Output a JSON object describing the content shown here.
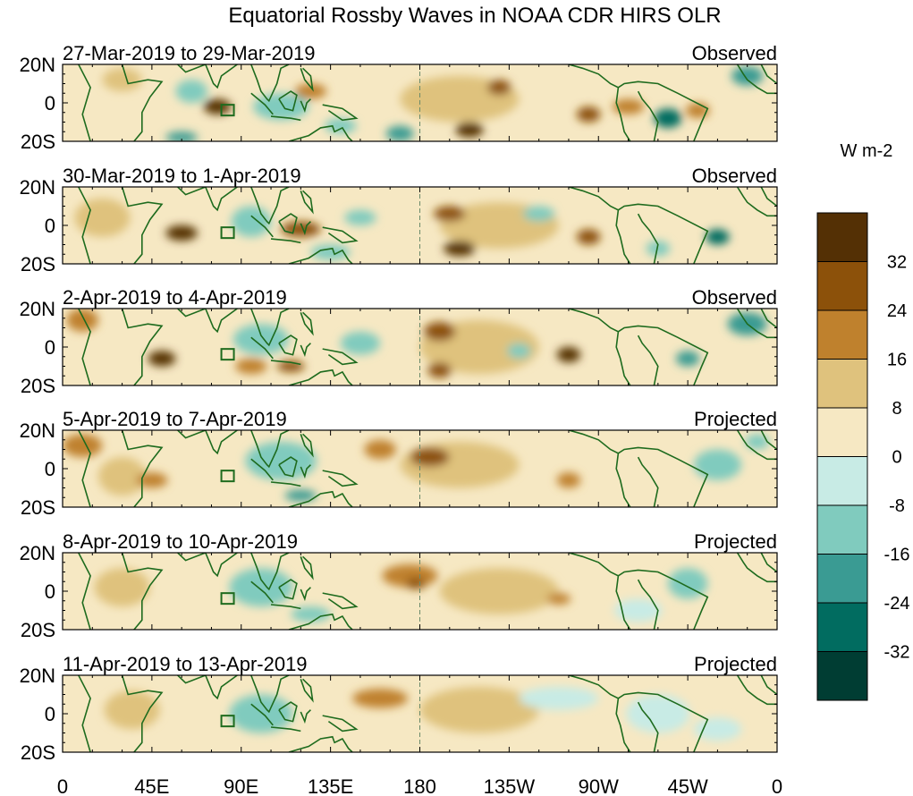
{
  "chart_data": {
    "type": "heatmap",
    "title": "Equatorial Rossby Waves in NOAA CDR HIRS OLR",
    "variable": "OLR anomaly",
    "units": "W m-2",
    "xlabel": "",
    "ylabel": "",
    "x_ticks": [
      "0",
      "45E",
      "90E",
      "135E",
      "180",
      "135W",
      "90W",
      "45W",
      "0"
    ],
    "x_tick_values": [
      0,
      45,
      90,
      135,
      180,
      225,
      270,
      315,
      360
    ],
    "x_range": [
      0,
      360
    ],
    "y_ticks": [
      "20N",
      "0",
      "20S"
    ],
    "y_tick_values": [
      20,
      0,
      -20
    ],
    "y_range": [
      -20,
      20
    ],
    "colorbar": {
      "levels": [
        -32,
        -24,
        -16,
        -8,
        0,
        8,
        16,
        24,
        32
      ],
      "labels": [
        "32",
        "24",
        "16",
        "8",
        "0",
        "-8",
        "-16",
        "-24",
        "-32"
      ],
      "colors": [
        "#003d33",
        "#016c60",
        "#3a9b93",
        "#80cbbe",
        "#c8ebe5",
        "#f6e8c3",
        "#dfc27d",
        "#bf812d",
        "#8c510a",
        "#543005"
      ]
    },
    "reference_line": {
      "x": 180,
      "style": "dashed"
    },
    "panels": [
      {
        "dates": "27-Mar-2019 to 29-Mar-2019",
        "status": "Observed",
        "blobs": [
          {
            "lon": 110,
            "lat": -2,
            "v": -16,
            "rx": 14,
            "ry": 7
          },
          {
            "lon": 78,
            "lat": -2,
            "v": 32,
            "rx": 7,
            "ry": 4
          },
          {
            "lon": 65,
            "lat": 6,
            "v": -16,
            "rx": 8,
            "ry": 6
          },
          {
            "lon": 125,
            "lat": 6,
            "v": 16,
            "rx": 8,
            "ry": 4
          },
          {
            "lon": 140,
            "lat": -12,
            "v": -16,
            "rx": 8,
            "ry": 4
          },
          {
            "lon": 170,
            "lat": -16,
            "v": -24,
            "rx": 7,
            "ry": 4
          },
          {
            "lon": 200,
            "lat": 2,
            "v": 8,
            "rx": 30,
            "ry": 12
          },
          {
            "lon": 220,
            "lat": 8,
            "v": 24,
            "rx": 6,
            "ry": 4
          },
          {
            "lon": 205,
            "lat": -14,
            "v": 32,
            "rx": 7,
            "ry": 4
          },
          {
            "lon": 265,
            "lat": -6,
            "v": 24,
            "rx": 6,
            "ry": 4
          },
          {
            "lon": 285,
            "lat": -2,
            "v": 16,
            "rx": 8,
            "ry": 4
          },
          {
            "lon": 305,
            "lat": -8,
            "v": -32,
            "rx": 7,
            "ry": 5
          },
          {
            "lon": 320,
            "lat": -4,
            "v": 16,
            "rx": 6,
            "ry": 4
          },
          {
            "lon": 345,
            "lat": 14,
            "v": -24,
            "rx": 8,
            "ry": 5
          },
          {
            "lon": 30,
            "lat": 12,
            "v": 8,
            "rx": 10,
            "ry": 6
          },
          {
            "lon": 60,
            "lat": -18,
            "v": -24,
            "rx": 8,
            "ry": 3
          }
        ]
      },
      {
        "dates": "30-Mar-2019 to 1-Apr-2019",
        "status": "Observed",
        "blobs": [
          {
            "lon": 60,
            "lat": -4,
            "v": 32,
            "rx": 8,
            "ry": 4
          },
          {
            "lon": 95,
            "lat": 2,
            "v": -16,
            "rx": 10,
            "ry": 8
          },
          {
            "lon": 120,
            "lat": -2,
            "v": 24,
            "rx": 10,
            "ry": 4
          },
          {
            "lon": 150,
            "lat": 4,
            "v": -16,
            "rx": 8,
            "ry": 4
          },
          {
            "lon": 135,
            "lat": -14,
            "v": -16,
            "rx": 10,
            "ry": 4
          },
          {
            "lon": 195,
            "lat": 6,
            "v": 24,
            "rx": 8,
            "ry": 4
          },
          {
            "lon": 200,
            "lat": -12,
            "v": 32,
            "rx": 8,
            "ry": 4
          },
          {
            "lon": 240,
            "lat": 6,
            "v": -16,
            "rx": 8,
            "ry": 4
          },
          {
            "lon": 265,
            "lat": -6,
            "v": 24,
            "rx": 6,
            "ry": 4
          },
          {
            "lon": 330,
            "lat": -6,
            "v": -32,
            "rx": 6,
            "ry": 4
          },
          {
            "lon": 300,
            "lat": -12,
            "v": -16,
            "rx": 6,
            "ry": 4
          },
          {
            "lon": 220,
            "lat": 0,
            "v": 8,
            "rx": 30,
            "ry": 12
          },
          {
            "lon": 20,
            "lat": 4,
            "v": 8,
            "rx": 14,
            "ry": 10
          }
        ]
      },
      {
        "dates": "2-Apr-2019 to 4-Apr-2019",
        "status": "Observed",
        "blobs": [
          {
            "lon": 50,
            "lat": -6,
            "v": 32,
            "rx": 7,
            "ry": 4
          },
          {
            "lon": 100,
            "lat": 4,
            "v": -16,
            "rx": 14,
            "ry": 8
          },
          {
            "lon": 95,
            "lat": -10,
            "v": 16,
            "rx": 8,
            "ry": 4
          },
          {
            "lon": 115,
            "lat": -10,
            "v": 24,
            "rx": 7,
            "ry": 3
          },
          {
            "lon": 150,
            "lat": 2,
            "v": -16,
            "rx": 10,
            "ry": 6
          },
          {
            "lon": 190,
            "lat": 8,
            "v": 24,
            "rx": 8,
            "ry": 5
          },
          {
            "lon": 190,
            "lat": -12,
            "v": 24,
            "rx": 6,
            "ry": 4
          },
          {
            "lon": 255,
            "lat": -4,
            "v": 32,
            "rx": 6,
            "ry": 4
          },
          {
            "lon": 230,
            "lat": -2,
            "v": -16,
            "rx": 6,
            "ry": 4
          },
          {
            "lon": 315,
            "lat": -6,
            "v": -24,
            "rx": 6,
            "ry": 4
          },
          {
            "lon": 345,
            "lat": 12,
            "v": -24,
            "rx": 10,
            "ry": 6
          },
          {
            "lon": 210,
            "lat": 0,
            "v": 8,
            "rx": 30,
            "ry": 14
          },
          {
            "lon": 10,
            "lat": 14,
            "v": 16,
            "rx": 8,
            "ry": 6
          }
        ]
      },
      {
        "dates": "5-Apr-2019 to 7-Apr-2019",
        "status": "Projected",
        "blobs": [
          {
            "lon": 45,
            "lat": -6,
            "v": 16,
            "rx": 8,
            "ry": 4
          },
          {
            "lon": 110,
            "lat": 4,
            "v": -16,
            "rx": 18,
            "ry": 10
          },
          {
            "lon": 120,
            "lat": -14,
            "v": -24,
            "rx": 8,
            "ry": 3
          },
          {
            "lon": 185,
            "lat": 6,
            "v": 24,
            "rx": 10,
            "ry": 5
          },
          {
            "lon": 160,
            "lat": 10,
            "v": 16,
            "rx": 8,
            "ry": 5
          },
          {
            "lon": 200,
            "lat": 2,
            "v": 8,
            "rx": 30,
            "ry": 12
          },
          {
            "lon": 255,
            "lat": -6,
            "v": 16,
            "rx": 6,
            "ry": 4
          },
          {
            "lon": 330,
            "lat": 2,
            "v": -16,
            "rx": 12,
            "ry": 8
          },
          {
            "lon": 350,
            "lat": 14,
            "v": -16,
            "rx": 6,
            "ry": 4
          },
          {
            "lon": 10,
            "lat": 12,
            "v": 16,
            "rx": 10,
            "ry": 6
          },
          {
            "lon": 30,
            "lat": -4,
            "v": 8,
            "rx": 12,
            "ry": 10
          }
        ]
      },
      {
        "dates": "8-Apr-2019 to 10-Apr-2019",
        "status": "Projected",
        "blobs": [
          {
            "lon": 100,
            "lat": 2,
            "v": -16,
            "rx": 16,
            "ry": 10
          },
          {
            "lon": 125,
            "lat": -12,
            "v": -16,
            "rx": 10,
            "ry": 4
          },
          {
            "lon": 175,
            "lat": 8,
            "v": 16,
            "rx": 14,
            "ry": 6
          },
          {
            "lon": 178,
            "lat": 4,
            "v": 24,
            "rx": 5,
            "ry": 3
          },
          {
            "lon": 220,
            "lat": 0,
            "v": 8,
            "rx": 30,
            "ry": 12
          },
          {
            "lon": 250,
            "lat": -4,
            "v": 16,
            "rx": 6,
            "ry": 3
          },
          {
            "lon": 315,
            "lat": 4,
            "v": -16,
            "rx": 10,
            "ry": 8
          },
          {
            "lon": 290,
            "lat": -10,
            "v": -8,
            "rx": 12,
            "ry": 6
          },
          {
            "lon": 30,
            "lat": 2,
            "v": 8,
            "rx": 14,
            "ry": 10
          }
        ]
      },
      {
        "dates": "11-Apr-2019 to 13-Apr-2019",
        "status": "Projected",
        "blobs": [
          {
            "lon": 100,
            "lat": 0,
            "v": -16,
            "rx": 16,
            "ry": 10
          },
          {
            "lon": 160,
            "lat": 8,
            "v": 16,
            "rx": 14,
            "ry": 5
          },
          {
            "lon": 210,
            "lat": 2,
            "v": 8,
            "rx": 30,
            "ry": 12
          },
          {
            "lon": 250,
            "lat": 8,
            "v": -8,
            "rx": 20,
            "ry": 6
          },
          {
            "lon": 300,
            "lat": 0,
            "v": -8,
            "rx": 16,
            "ry": 10
          },
          {
            "lon": 330,
            "lat": -8,
            "v": -8,
            "rx": 12,
            "ry": 6
          },
          {
            "lon": 35,
            "lat": 2,
            "v": 8,
            "rx": 14,
            "ry": 10
          }
        ]
      }
    ]
  }
}
